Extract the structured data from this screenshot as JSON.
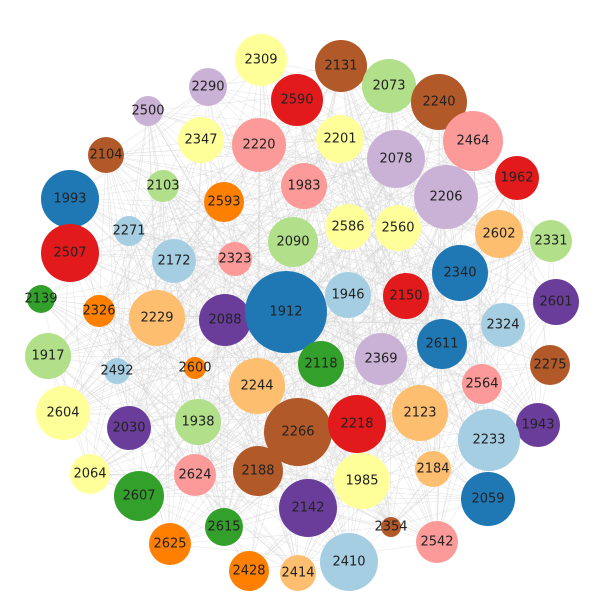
{
  "palette": {
    "blue": "#1f78b4",
    "light_blue": "#a6cee3",
    "green": "#33a02c",
    "light_green": "#b2df8a",
    "red": "#e31a1c",
    "pink": "#fb9a99",
    "orange": "#ff7f00",
    "light_orange": "#fdbf6f",
    "purple": "#6a3d9a",
    "lavender": "#cab2d6",
    "yellow": "#ffff99",
    "brown": "#b15928",
    "edge": "#d3d3d3"
  },
  "nodes": [
    {
      "id": "2309",
      "color": "yellow"
    },
    {
      "id": "2131",
      "color": "brown"
    },
    {
      "id": "2290",
      "color": "lavender"
    },
    {
      "id": "2073",
      "color": "light_green"
    },
    {
      "id": "2590",
      "color": "red"
    },
    {
      "id": "2240",
      "color": "brown"
    },
    {
      "id": "2500",
      "color": "lavender"
    },
    {
      "id": "2347",
      "color": "yellow"
    },
    {
      "id": "2220",
      "color": "pink"
    },
    {
      "id": "2201",
      "color": "yellow"
    },
    {
      "id": "2078",
      "color": "lavender"
    },
    {
      "id": "2464",
      "color": "pink"
    },
    {
      "id": "2104",
      "color": "brown"
    },
    {
      "id": "1983",
      "color": "pink"
    },
    {
      "id": "1962",
      "color": "red"
    },
    {
      "id": "2103",
      "color": "light_green"
    },
    {
      "id": "1993",
      "color": "blue"
    },
    {
      "id": "2593",
      "color": "orange"
    },
    {
      "id": "2206",
      "color": "lavender"
    },
    {
      "id": "2271",
      "color": "light_blue"
    },
    {
      "id": "2586",
      "color": "yellow"
    },
    {
      "id": "2560",
      "color": "yellow"
    },
    {
      "id": "2602",
      "color": "light_orange"
    },
    {
      "id": "2331",
      "color": "light_green"
    },
    {
      "id": "2507",
      "color": "red"
    },
    {
      "id": "2090",
      "color": "light_green"
    },
    {
      "id": "2172",
      "color": "light_blue"
    },
    {
      "id": "2323",
      "color": "pink"
    },
    {
      "id": "2340",
      "color": "blue"
    },
    {
      "id": "2139",
      "color": "green"
    },
    {
      "id": "2326",
      "color": "orange"
    },
    {
      "id": "2229",
      "color": "light_orange"
    },
    {
      "id": "2088",
      "color": "purple"
    },
    {
      "id": "1912",
      "color": "blue"
    },
    {
      "id": "1946",
      "color": "light_blue"
    },
    {
      "id": "2150",
      "color": "red"
    },
    {
      "id": "2601",
      "color": "purple"
    },
    {
      "id": "2324",
      "color": "light_blue"
    },
    {
      "id": "1917",
      "color": "light_green"
    },
    {
      "id": "2611",
      "color": "blue"
    },
    {
      "id": "2492",
      "color": "light_blue"
    },
    {
      "id": "2600",
      "color": "orange"
    },
    {
      "id": "2118",
      "color": "green"
    },
    {
      "id": "2369",
      "color": "lavender"
    },
    {
      "id": "2275",
      "color": "brown"
    },
    {
      "id": "2244",
      "color": "light_orange"
    },
    {
      "id": "2564",
      "color": "pink"
    },
    {
      "id": "2604",
      "color": "yellow"
    },
    {
      "id": "2030",
      "color": "purple"
    },
    {
      "id": "1938",
      "color": "light_green"
    },
    {
      "id": "2266",
      "color": "brown"
    },
    {
      "id": "2218",
      "color": "red"
    },
    {
      "id": "2123",
      "color": "light_orange"
    },
    {
      "id": "1943",
      "color": "purple"
    },
    {
      "id": "2233",
      "color": "light_blue"
    },
    {
      "id": "2064",
      "color": "yellow"
    },
    {
      "id": "2624",
      "color": "pink"
    },
    {
      "id": "2188",
      "color": "brown"
    },
    {
      "id": "1985",
      "color": "yellow"
    },
    {
      "id": "2184",
      "color": "light_orange"
    },
    {
      "id": "2607",
      "color": "green"
    },
    {
      "id": "2142",
      "color": "purple"
    },
    {
      "id": "2059",
      "color": "blue"
    },
    {
      "id": "2615",
      "color": "green"
    },
    {
      "id": "2354",
      "color": "brown"
    },
    {
      "id": "2625",
      "color": "orange"
    },
    {
      "id": "2542",
      "color": "pink"
    },
    {
      "id": "2410",
      "color": "light_blue"
    },
    {
      "id": "2428",
      "color": "orange"
    },
    {
      "id": "2414",
      "color": "light_orange"
    }
  ]
}
